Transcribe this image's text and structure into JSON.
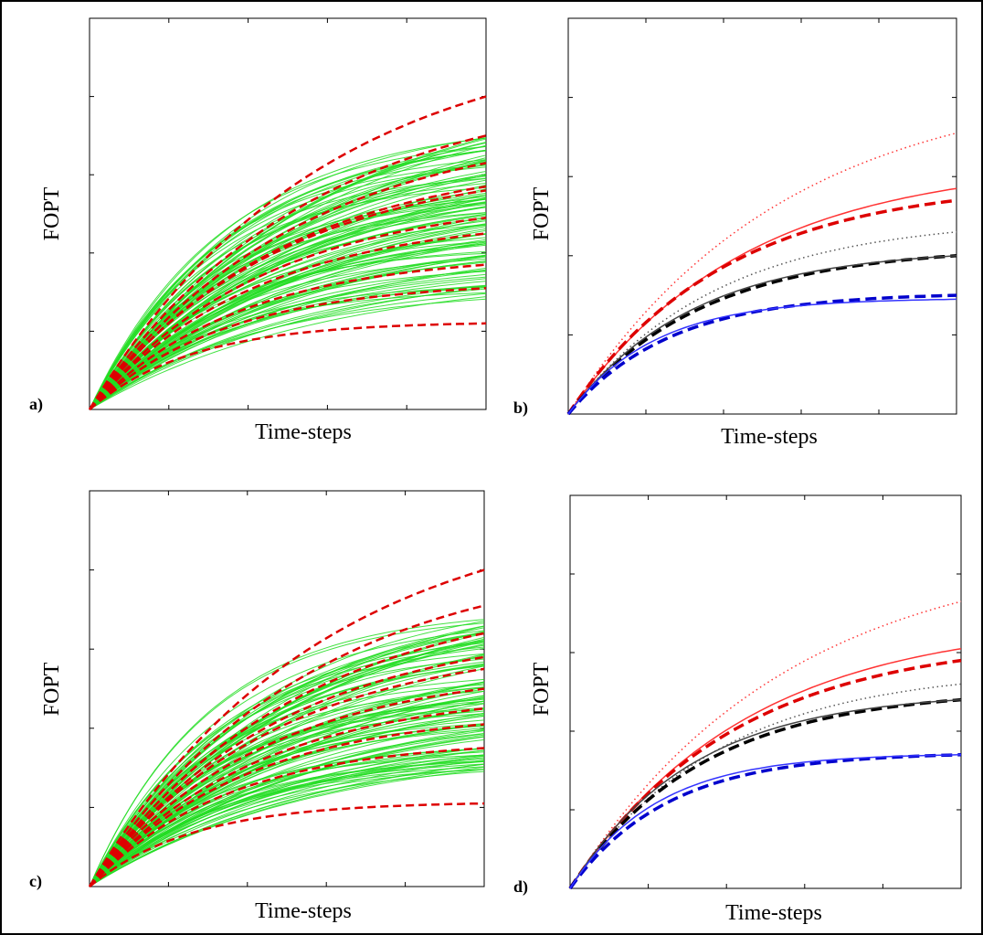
{
  "chart_data": [
    {
      "panel_label": "a)",
      "type": "line",
      "xlabel": "Time-steps",
      "ylabel": "FOPT",
      "xlim": [
        0,
        1
      ],
      "ylim": [
        0,
        1
      ],
      "ensemble": {
        "count": 110,
        "final_range": [
          0.28,
          0.7
        ],
        "color": "#22dd22",
        "style": "solid"
      },
      "series": [
        {
          "final": 0.8,
          "knee": 0.58,
          "color": "#dd0000",
          "style": "dashed"
        },
        {
          "final": 0.7,
          "knee": 0.55,
          "color": "#dd0000",
          "style": "dashed"
        },
        {
          "final": 0.63,
          "knee": 0.52,
          "color": "#dd0000",
          "style": "dashed"
        },
        {
          "final": 0.57,
          "knee": 0.48,
          "color": "#dd0000",
          "style": "dashed"
        },
        {
          "final": 0.56,
          "knee": 0.47,
          "color": "#dd0000",
          "style": "dashed"
        },
        {
          "final": 0.49,
          "knee": 0.44,
          "color": "#dd0000",
          "style": "dashed"
        },
        {
          "final": 0.45,
          "knee": 0.42,
          "color": "#dd0000",
          "style": "dashed"
        },
        {
          "final": 0.37,
          "knee": 0.38,
          "color": "#dd0000",
          "style": "dashed"
        },
        {
          "final": 0.31,
          "knee": 0.34,
          "color": "#dd0000",
          "style": "dashed"
        },
        {
          "final": 0.22,
          "knee": 0.26,
          "color": "#dd0000",
          "style": "dashed"
        }
      ]
    },
    {
      "panel_label": "b)",
      "type": "line",
      "xlabel": "Time-steps",
      "ylabel": "FOPT",
      "xlim": [
        0,
        1
      ],
      "ylim": [
        0,
        1
      ],
      "series": [
        {
          "final": 0.71,
          "knee": 0.55,
          "color": "#ff3333",
          "style": "dotted"
        },
        {
          "final": 0.57,
          "knee": 0.45,
          "color": "#ff3333",
          "style": "solid"
        },
        {
          "final": 0.54,
          "knee": 0.4,
          "color": "#dd0000",
          "style": "dashed-bold"
        },
        {
          "final": 0.46,
          "knee": 0.38,
          "color": "#555555",
          "style": "dotted"
        },
        {
          "final": 0.4,
          "knee": 0.34,
          "color": "#000000",
          "style": "dashed-bold"
        },
        {
          "final": 0.4,
          "knee": 0.32,
          "color": "#444444",
          "style": "solid"
        },
        {
          "final": 0.3,
          "knee": 0.26,
          "color": "#0000cc",
          "style": "dashed-bold"
        },
        {
          "final": 0.29,
          "knee": 0.22,
          "color": "#3333ff",
          "style": "solid"
        }
      ]
    },
    {
      "panel_label": "c)",
      "type": "line",
      "xlabel": "Time-steps",
      "ylabel": "FOPT",
      "xlim": [
        0,
        1
      ],
      "ylim": [
        0,
        1
      ],
      "ensemble": {
        "count": 110,
        "final_range": [
          0.29,
          0.68
        ],
        "color": "#22dd22",
        "style": "solid"
      },
      "series": [
        {
          "final": 0.8,
          "knee": 0.58,
          "color": "#dd0000",
          "style": "dashed"
        },
        {
          "final": 0.71,
          "knee": 0.55,
          "color": "#dd0000",
          "style": "dashed"
        },
        {
          "final": 0.64,
          "knee": 0.52,
          "color": "#dd0000",
          "style": "dashed"
        },
        {
          "final": 0.58,
          "knee": 0.48,
          "color": "#dd0000",
          "style": "dashed"
        },
        {
          "final": 0.55,
          "knee": 0.46,
          "color": "#dd0000",
          "style": "dashed"
        },
        {
          "final": 0.5,
          "knee": 0.44,
          "color": "#dd0000",
          "style": "dashed"
        },
        {
          "final": 0.45,
          "knee": 0.42,
          "color": "#dd0000",
          "style": "dashed"
        },
        {
          "final": 0.41,
          "knee": 0.39,
          "color": "#dd0000",
          "style": "dashed"
        },
        {
          "final": 0.35,
          "knee": 0.35,
          "color": "#dd0000",
          "style": "dashed"
        },
        {
          "final": 0.21,
          "knee": 0.26,
          "color": "#dd0000",
          "style": "dashed"
        }
      ]
    },
    {
      "panel_label": "d)",
      "type": "line",
      "xlabel": "Time-steps",
      "ylabel": "FOPT",
      "xlim": [
        0,
        1
      ],
      "ylim": [
        0,
        1
      ],
      "series": [
        {
          "final": 0.73,
          "knee": 0.55,
          "color": "#ff3333",
          "style": "dotted"
        },
        {
          "final": 0.61,
          "knee": 0.45,
          "color": "#ff3333",
          "style": "solid"
        },
        {
          "final": 0.58,
          "knee": 0.42,
          "color": "#dd0000",
          "style": "dashed-bold"
        },
        {
          "final": 0.52,
          "knee": 0.38,
          "color": "#555555",
          "style": "dotted"
        },
        {
          "final": 0.48,
          "knee": 0.34,
          "color": "#000000",
          "style": "dashed-bold"
        },
        {
          "final": 0.48,
          "knee": 0.31,
          "color": "#444444",
          "style": "solid"
        },
        {
          "final": 0.34,
          "knee": 0.25,
          "color": "#0000cc",
          "style": "dashed-bold"
        },
        {
          "final": 0.34,
          "knee": 0.22,
          "color": "#3333ff",
          "style": "solid"
        }
      ]
    }
  ]
}
